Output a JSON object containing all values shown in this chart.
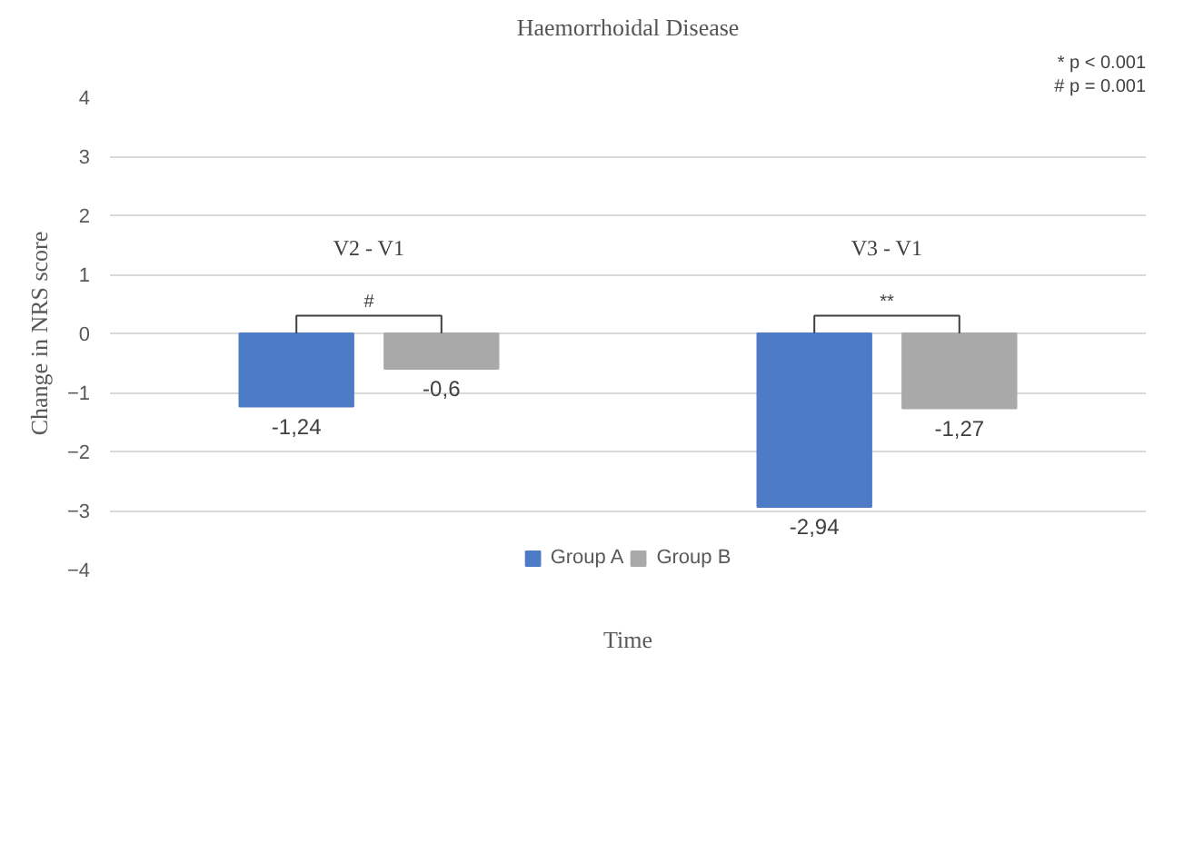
{
  "chart_data": {
    "type": "bar",
    "title": "Haemorrhoidal Disease",
    "xlabel": "Time",
    "ylabel": "Change in NRS score",
    "categories": [
      "V2 - V1",
      "V3 - V1"
    ],
    "series": [
      {
        "name": "Group A",
        "color": "#4e7bc6",
        "values": [
          -1.24,
          -2.94
        ],
        "value_labels": [
          "-1,24",
          "-2,94"
        ]
      },
      {
        "name": "Group B",
        "color": "#a9a9a9",
        "values": [
          -0.6,
          -1.27
        ],
        "value_labels": [
          "-0,6",
          "-1,27"
        ]
      }
    ],
    "ylim": [
      -4,
      4
    ],
    "yticks": [
      -4,
      -3,
      -2,
      -1,
      0,
      1,
      2,
      3,
      4
    ],
    "grid": "y",
    "legend": "bottom",
    "annotations": [
      "# p = 0.001",
      "* p < 0.001",
      "#",
      "**"
    ]
  }
}
